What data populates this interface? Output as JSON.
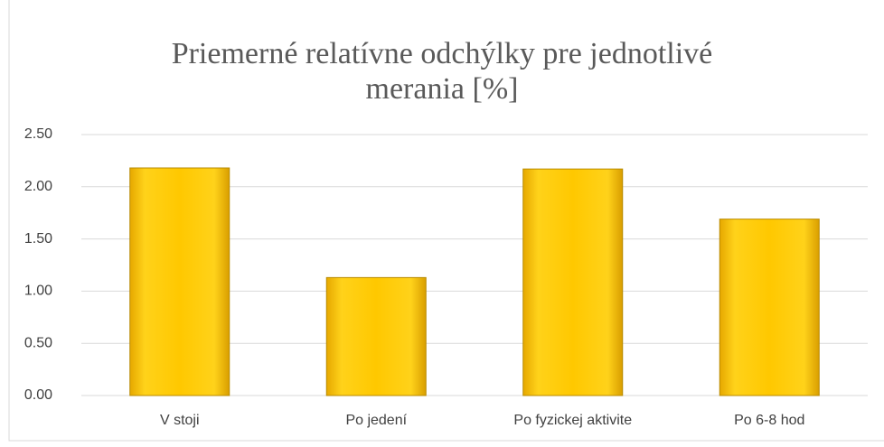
{
  "chart_data": {
    "type": "bar",
    "title": "Priemerné relatívne odchýlky pre jednotlivé merania [%]",
    "categories": [
      "V stoji",
      "Po jedení",
      "Po fyzickej aktivite",
      "Po 6-8 hod"
    ],
    "values": [
      2.18,
      1.13,
      2.17,
      1.69
    ],
    "color": "#ffc000",
    "ylim": [
      0,
      2.5
    ],
    "yticks": [
      {
        "value": 0,
        "label": "0.00"
      },
      {
        "value": 0.5,
        "label": "0.50"
      },
      {
        "value": 1,
        "label": "1.00"
      },
      {
        "value": 1.5,
        "label": "1.50"
      },
      {
        "value": 2,
        "label": "2.00"
      },
      {
        "value": 2.5,
        "label": "2.50"
      }
    ],
    "grid": true
  }
}
